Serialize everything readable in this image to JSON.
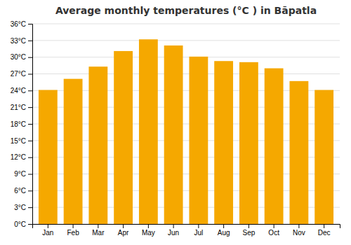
{
  "chart_data": {
    "type": "bar",
    "title": "Average monthly temperatures (°C ) in Bāpatla",
    "categories": [
      "Jan",
      "Feb",
      "Mar",
      "Apr",
      "May",
      "Jun",
      "Jul",
      "Aug",
      "Sep",
      "Oct",
      "Nov",
      "Dec"
    ],
    "values": [
      24.1,
      26.1,
      28.3,
      31.1,
      33.2,
      32.1,
      30.1,
      29.3,
      29.1,
      28.0,
      25.7,
      24.1
    ],
    "color": "#F5A800",
    "ylim": [
      0,
      36
    ],
    "yticks": [
      {
        "value": 0,
        "label": "0°C"
      },
      {
        "value": 3,
        "label": "3°C"
      },
      {
        "value": 6,
        "label": "6°C"
      },
      {
        "value": 9,
        "label": "9°C"
      },
      {
        "value": 12,
        "label": "12°C"
      },
      {
        "value": 15,
        "label": "15°C"
      },
      {
        "value": 18,
        "label": "18°C"
      },
      {
        "value": 21,
        "label": "21°C"
      },
      {
        "value": 24,
        "label": "24°C"
      },
      {
        "value": 27,
        "label": "27°C"
      },
      {
        "value": 30,
        "label": "30°C"
      },
      {
        "value": 33,
        "label": "33°C"
      },
      {
        "value": 36,
        "label": "36°C"
      }
    ],
    "grid": true
  }
}
